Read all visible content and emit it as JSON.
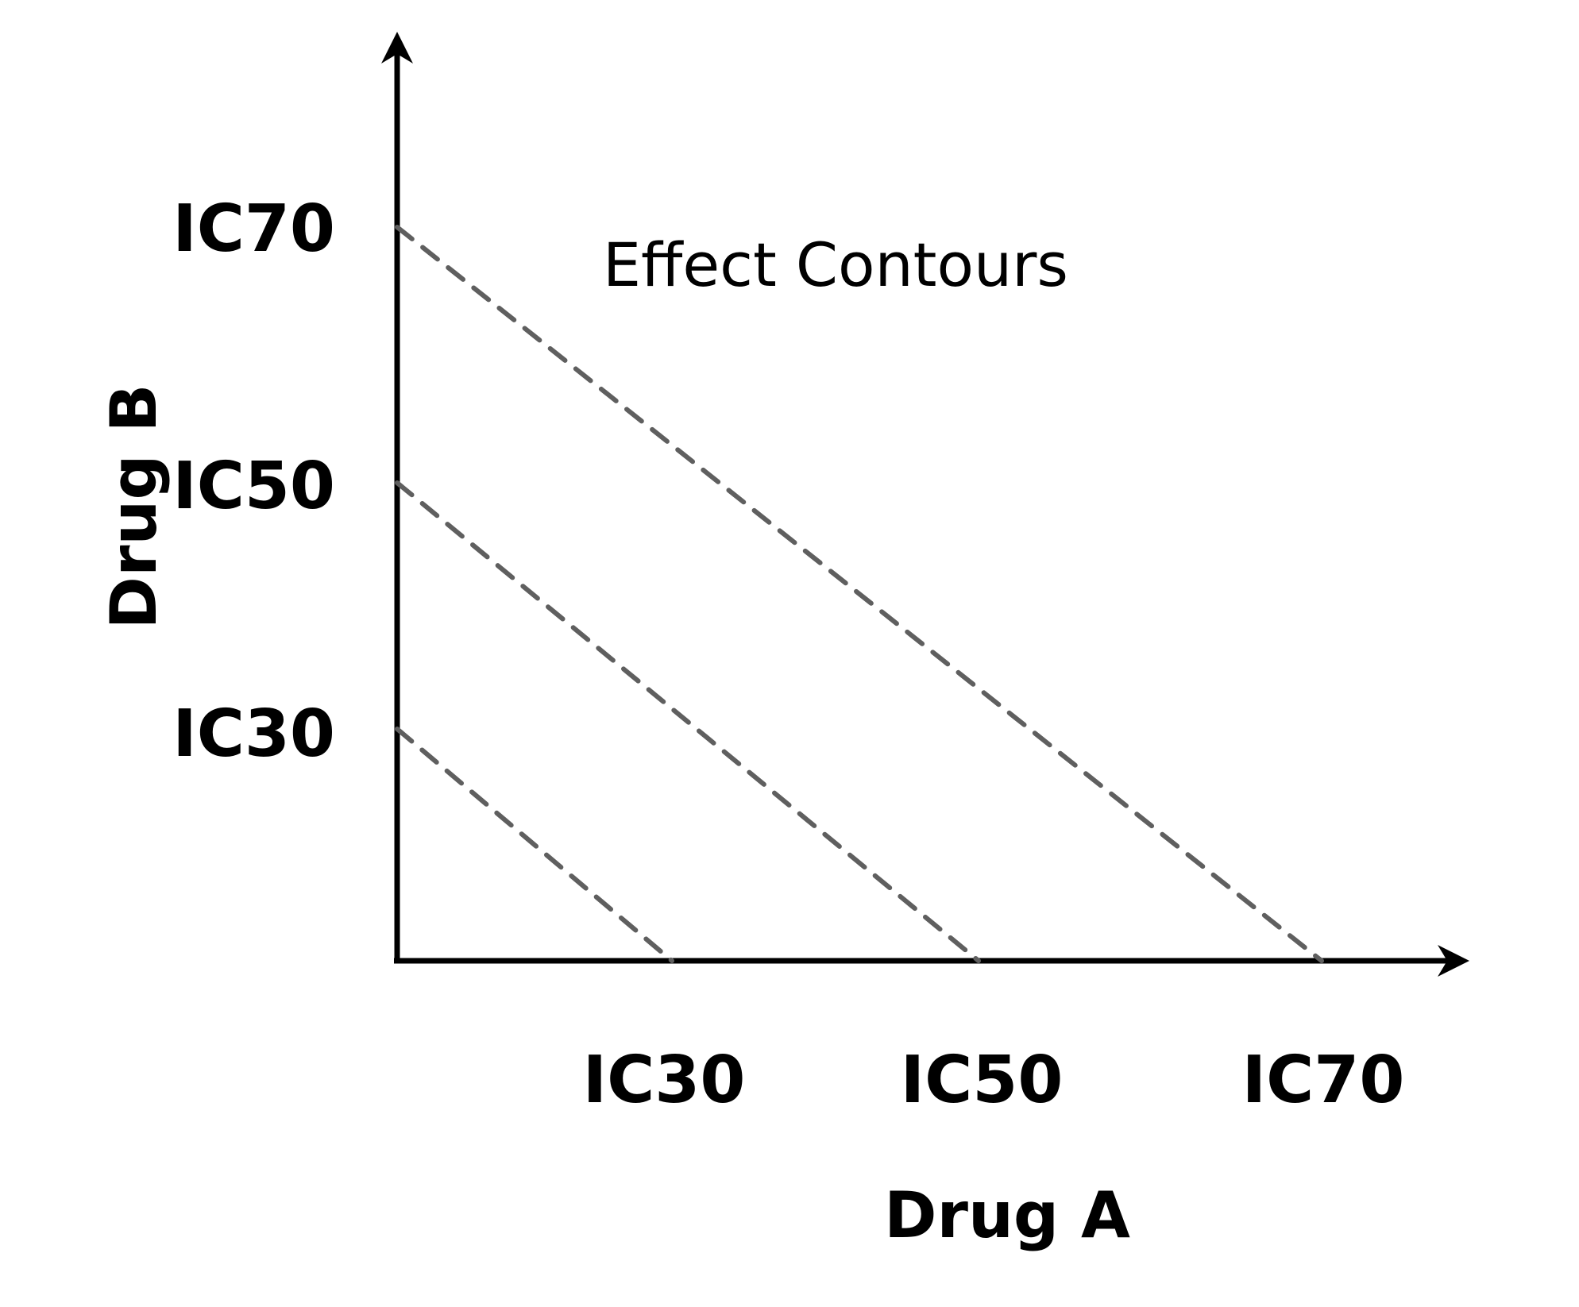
{
  "title": "Effect Contours",
  "x_axis": {
    "label": "Drug A",
    "ticks": [
      {
        "label": "IC30",
        "value": 30
      },
      {
        "label": "IC50",
        "value": 50
      },
      {
        "label": "IC70",
        "value": 70
      }
    ]
  },
  "y_axis": {
    "label": "Drug B",
    "ticks": [
      {
        "label": "IC30",
        "value": 30
      },
      {
        "label": "IC50",
        "value": 50
      },
      {
        "label": "IC70",
        "value": 70
      }
    ]
  },
  "contours": [
    {
      "level": 30,
      "from": {
        "x": 0,
        "y": 30
      },
      "to": {
        "x": 30,
        "y": 0
      }
    },
    {
      "level": 50,
      "from": {
        "x": 0,
        "y": 50
      },
      "to": {
        "x": 50,
        "y": 0
      }
    },
    {
      "level": 70,
      "from": {
        "x": 0,
        "y": 70
      },
      "to": {
        "x": 70,
        "y": 0
      }
    }
  ],
  "colors": {
    "axis": "#000000",
    "contour": "#5f5f5f",
    "background": "#ffffff"
  }
}
